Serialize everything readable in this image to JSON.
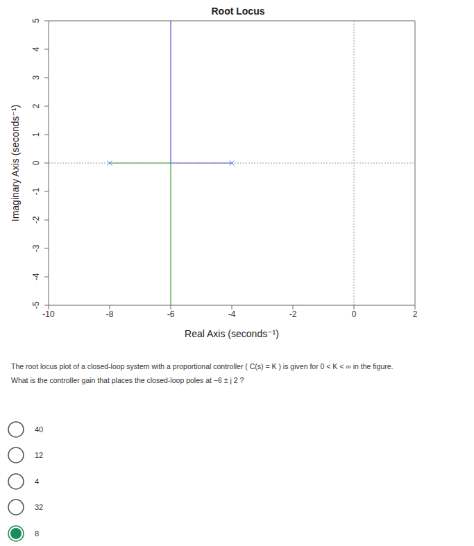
{
  "chart_data": {
    "type": "root_locus",
    "title": "Root Locus",
    "x_label": "Real Axis (seconds⁻¹)",
    "y_label": "Imaginary Axis (seconds⁻¹)",
    "xlim": [
      -10,
      2
    ],
    "xticks": [
      -10,
      -8,
      -6,
      -4,
      -2,
      0,
      2
    ],
    "ylim": [
      -5,
      5
    ],
    "yticks": [
      -5,
      -4,
      -3,
      -2,
      -1,
      0,
      1,
      2,
      3,
      4,
      5
    ],
    "axis_lines": {
      "x": 0,
      "y": 0
    },
    "series": [
      {
        "type": "line",
        "color": "#5454d6",
        "x": [
          -4,
          -6,
          -6
        ],
        "y": [
          0,
          0,
          5
        ]
      },
      {
        "type": "line",
        "color": "#3f9f3f",
        "x": [
          -8,
          -6,
          -6
        ],
        "y": [
          0,
          0,
          -5
        ]
      },
      {
        "type": "scatter",
        "marker": "x",
        "color": "#4f7fd1",
        "x": [
          -8,
          -4
        ],
        "y": [
          0,
          0
        ]
      }
    ]
  },
  "question": [
    "The root locus plot of a closed-loop system with a proportional controller ( C(s) = K ) is given for 0 < K < ∞  in the figure.",
    "What is the controller gain that places the closed-loop poles at −6 ± j 2  ?"
  ],
  "options": [
    "40",
    "12",
    "4",
    "32",
    "8"
  ],
  "selected": "8"
}
